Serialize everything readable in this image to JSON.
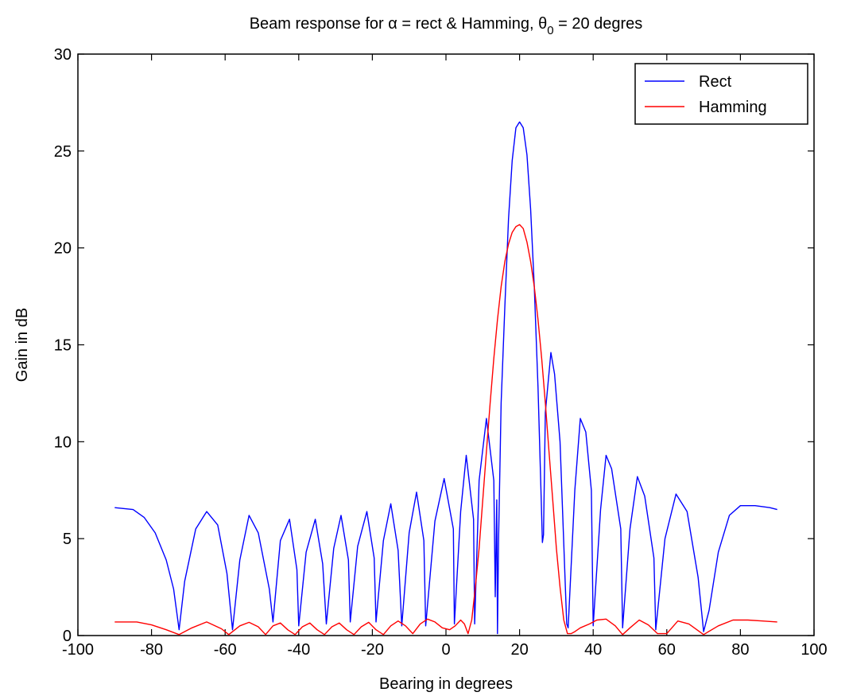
{
  "chart_data": {
    "type": "line",
    "title": {
      "prefix": "Beam response for ",
      "alpha_symbol": "α",
      "middle": " = rect & Hamming, ",
      "theta_symbol": "θ",
      "theta_subscript": "0",
      "suffix": " = 20 degres"
    },
    "xlabel": "Bearing in degrees",
    "ylabel": "Gain in dB",
    "xlim": [
      -100,
      100
    ],
    "ylim": [
      0,
      30
    ],
    "xticks": [
      -100,
      -80,
      -60,
      -40,
      -20,
      0,
      20,
      40,
      60,
      80,
      100
    ],
    "yticks": [
      0,
      5,
      10,
      15,
      20,
      25,
      30
    ],
    "grid": false,
    "legend_position": "top-right",
    "series": [
      {
        "name": "Rect",
        "color": "#0000ff",
        "x": [
          -90,
          -85,
          -82,
          -79,
          -76,
          -74,
          -72.5,
          -71,
          -68,
          -65,
          -62,
          -59.5,
          -58,
          -56,
          -53.5,
          -51,
          -48,
          -47,
          -45,
          -42.5,
          -40.5,
          -40,
          -38,
          -35.5,
          -33.5,
          -32.5,
          -30.5,
          -28.5,
          -26.5,
          -26,
          -24,
          -21.5,
          -19.5,
          -19,
          -17,
          -15,
          -13,
          -12,
          -10,
          -8,
          -6,
          -5.5,
          -3,
          -0.5,
          2,
          2.3,
          4,
          5.5,
          7.5,
          7.8,
          9,
          11,
          13,
          13.4,
          13.8,
          14,
          14.3,
          15,
          16,
          17,
          18,
          19,
          20,
          21,
          22,
          23,
          24,
          25,
          25.8,
          26.2,
          26.5,
          27,
          28.5,
          29.5,
          31,
          32.8,
          33.2,
          35,
          36.5,
          38,
          39.5,
          40,
          42,
          43.5,
          45,
          47.5,
          48,
          50,
          52,
          54,
          56.5,
          57,
          59.5,
          62.5,
          65.5,
          68.5,
          70,
          71.5,
          74,
          77,
          80,
          84,
          88,
          90
        ],
        "y": [
          6.6,
          6.5,
          6.1,
          5.3,
          3.9,
          2.4,
          0.3,
          2.8,
          5.5,
          6.4,
          5.7,
          3.2,
          0.3,
          3.9,
          6.2,
          5.3,
          2.4,
          0.7,
          4.9,
          6.0,
          3.4,
          0.5,
          4.3,
          6.0,
          3.7,
          0.6,
          4.5,
          6.2,
          3.9,
          0.7,
          4.6,
          6.4,
          4.0,
          0.7,
          4.9,
          6.8,
          4.4,
          0.5,
          5.3,
          7.4,
          4.9,
          0.5,
          5.9,
          8.1,
          5.5,
          0.6,
          6.4,
          9.3,
          6.0,
          0.6,
          8.0,
          11.2,
          8.0,
          2.0,
          7.0,
          0.1,
          5.0,
          12.0,
          17.0,
          21.5,
          24.5,
          26.2,
          26.5,
          26.2,
          24.8,
          22.0,
          18.0,
          12.8,
          7.5,
          4.8,
          5.2,
          11.5,
          14.6,
          13.5,
          10.0,
          0.6,
          0.4,
          7.5,
          11.2,
          10.5,
          7.5,
          0.5,
          6.5,
          9.3,
          8.6,
          5.5,
          0.4,
          5.5,
          8.2,
          7.2,
          4.0,
          0.3,
          5.0,
          7.3,
          6.4,
          3.0,
          0.2,
          1.3,
          4.3,
          6.2,
          6.7,
          6.7,
          6.6,
          6.5
        ]
      },
      {
        "name": "Hamming",
        "color": "#ff0000",
        "x": [
          -90,
          -84,
          -80,
          -76,
          -72.5,
          -69,
          -65,
          -61,
          -59,
          -56,
          -53.5,
          -51,
          -49,
          -47,
          -45,
          -43,
          -41,
          -39,
          -37,
          -35,
          -33,
          -31,
          -29,
          -27,
          -25,
          -23,
          -21,
          -19,
          -17,
          -15,
          -13,
          -11,
          -9,
          -7,
          -5,
          -3,
          -1,
          1,
          2.5,
          4,
          5,
          6,
          7,
          8,
          9,
          10,
          11,
          12,
          13,
          14,
          15,
          16,
          17,
          18,
          19,
          20,
          21,
          22,
          23,
          24,
          25,
          26,
          27,
          28,
          29,
          30,
          31,
          32,
          33,
          34,
          35,
          36.5,
          39,
          41,
          43.5,
          46,
          48,
          50,
          52.5,
          55,
          57.5,
          60,
          63,
          66,
          70,
          74,
          78,
          82,
          86,
          90
        ],
        "y": [
          0.7,
          0.7,
          0.55,
          0.3,
          0.05,
          0.4,
          0.7,
          0.35,
          0.05,
          0.5,
          0.68,
          0.45,
          0.05,
          0.5,
          0.65,
          0.3,
          0.05,
          0.45,
          0.65,
          0.3,
          0.05,
          0.45,
          0.65,
          0.3,
          0.05,
          0.45,
          0.68,
          0.3,
          0.05,
          0.5,
          0.75,
          0.5,
          0.1,
          0.6,
          0.85,
          0.7,
          0.4,
          0.3,
          0.5,
          0.8,
          0.6,
          0.1,
          0.8,
          2.5,
          4.5,
          7.0,
          9.5,
          12.0,
          14.3,
          16.3,
          18.0,
          19.3,
          20.2,
          20.8,
          21.1,
          21.2,
          21.0,
          20.3,
          19.3,
          18.0,
          16.3,
          14.3,
          12.0,
          9.5,
          7.0,
          4.5,
          2.5,
          0.8,
          0.1,
          0.1,
          0.2,
          0.4,
          0.6,
          0.8,
          0.85,
          0.5,
          0.05,
          0.4,
          0.8,
          0.55,
          0.1,
          0.1,
          0.75,
          0.6,
          0.05,
          0.5,
          0.8,
          0.8,
          0.75,
          0.7
        ]
      }
    ]
  }
}
